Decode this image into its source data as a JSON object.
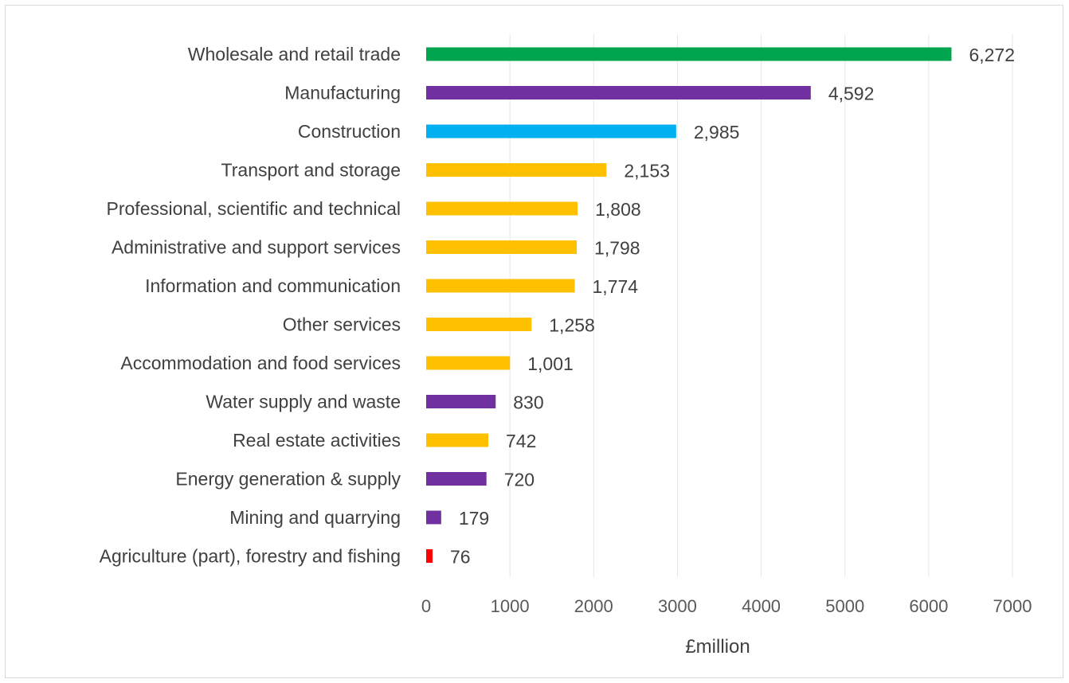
{
  "chart_data": {
    "type": "bar",
    "orientation": "horizontal",
    "title": "",
    "xlabel": "£million",
    "ylabel": "",
    "xlim": [
      0,
      7000
    ],
    "xticks": [
      0,
      1000,
      2000,
      3000,
      4000,
      5000,
      6000,
      7000
    ],
    "grid": "vertical",
    "legend": "none",
    "categories": [
      "Wholesale and retail trade",
      "Manufacturing",
      "Construction",
      "Transport and storage",
      "Professional, scientific and technical",
      "Administrative and support services",
      "Information and communication",
      "Other services",
      "Accommodation and food services",
      "Water supply and waste",
      "Real estate activities",
      "Energy generation & supply",
      "Mining and quarrying",
      "Agriculture (part), forestry and fishing"
    ],
    "values": [
      6272,
      4592,
      2985,
      2153,
      1808,
      1798,
      1774,
      1258,
      1001,
      830,
      742,
      720,
      179,
      76
    ],
    "value_labels": [
      "6,272",
      "4,592",
      "2,985",
      "2,153",
      "1,808",
      "1,798",
      "1,774",
      "1,258",
      "1,001",
      "830",
      "742",
      "720",
      "179",
      "76"
    ],
    "colors": [
      "#00a550",
      "#7030a0",
      "#00b0f0",
      "#ffc000",
      "#ffc000",
      "#ffc000",
      "#ffc000",
      "#ffc000",
      "#ffc000",
      "#7030a0",
      "#ffc000",
      "#7030a0",
      "#7030a0",
      "#ff0000"
    ]
  }
}
